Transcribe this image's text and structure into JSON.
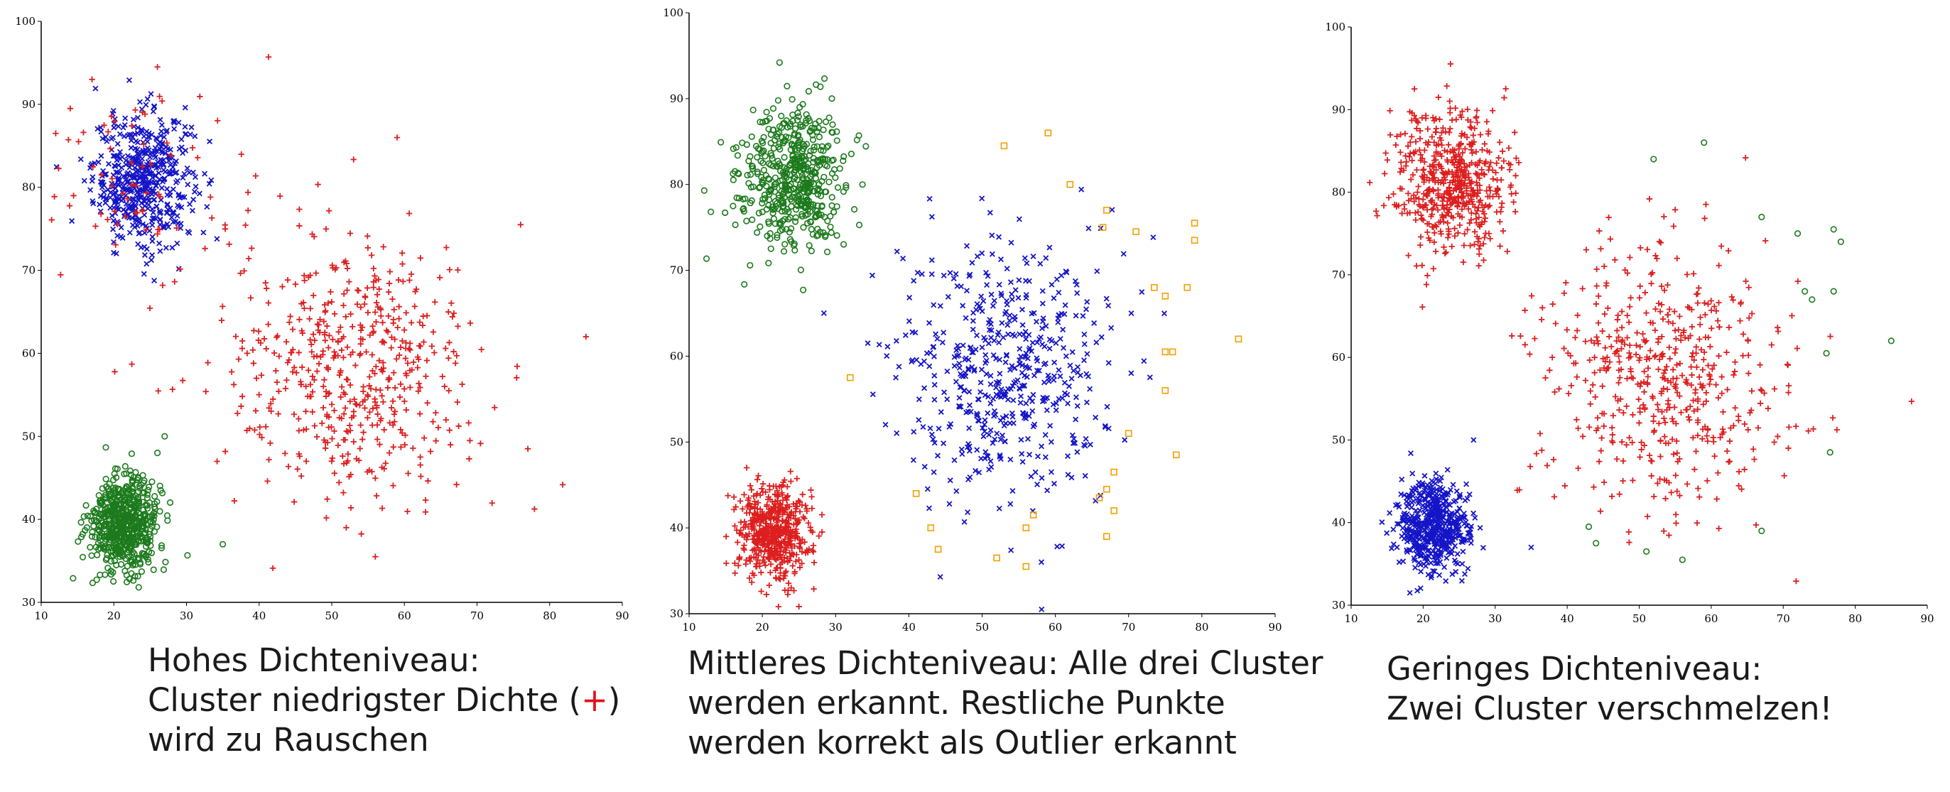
{
  "chart_data": [
    {
      "type": "scatter",
      "title": "",
      "xlabel": "",
      "ylabel": "",
      "xlim": [
        10,
        90
      ],
      "ylim": [
        30,
        100
      ],
      "xticks": [
        "10",
        "20",
        "30",
        "40",
        "50",
        "60",
        "70",
        "80",
        "90"
      ],
      "yticks": [
        "30",
        "40",
        "50",
        "60",
        "70",
        "80",
        "90",
        "100"
      ],
      "grid": false,
      "colors": {
        "red": "#dd1f1f",
        "blue": "#1515c8",
        "green": "#1c7a1c"
      },
      "clusters": [
        {
          "color": "blue",
          "marker": "x",
          "cx": 24,
          "cy": 81,
          "sx": 3.4,
          "sy": 4.0,
          "n": 520
        },
        {
          "color": "red",
          "marker": "plus",
          "cx": 53,
          "cy": 58,
          "sx": 8.5,
          "sy": 8.0,
          "n": 520
        },
        {
          "color": "green",
          "marker": "circle",
          "cx": 21.5,
          "cy": 39.5,
          "sx": 2.4,
          "sy": 2.8,
          "n": 560
        },
        {
          "color": "red",
          "marker": "plus",
          "cx": 24,
          "cy": 80,
          "sx": 7,
          "sy": 8,
          "n": 70
        }
      ],
      "points": [
        {
          "x": 12,
          "y": 86.5,
          "color": "red",
          "marker": "plus"
        },
        {
          "x": 14,
          "y": 89.5,
          "color": "red",
          "marker": "plus"
        },
        {
          "x": 17,
          "y": 93,
          "color": "red",
          "marker": "plus"
        },
        {
          "x": 26,
          "y": 94.5,
          "color": "red",
          "marker": "plus"
        },
        {
          "x": 59,
          "y": 86,
          "color": "red",
          "marker": "plus"
        },
        {
          "x": 76,
          "y": 75.5,
          "color": "red",
          "marker": "plus"
        },
        {
          "x": 85,
          "y": 62,
          "color": "red",
          "marker": "plus"
        },
        {
          "x": 77,
          "y": 48.5,
          "color": "red",
          "marker": "plus"
        },
        {
          "x": 52,
          "y": 39,
          "color": "red",
          "marker": "plus"
        },
        {
          "x": 56,
          "y": 35.5,
          "color": "red",
          "marker": "plus"
        },
        {
          "x": 27,
          "y": 50,
          "color": "green",
          "marker": "circle"
        },
        {
          "x": 26,
          "y": 48,
          "color": "green",
          "marker": "circle"
        },
        {
          "x": 35,
          "y": 37,
          "color": "green",
          "marker": "circle"
        }
      ]
    },
    {
      "type": "scatter",
      "title": "",
      "xlabel": "",
      "ylabel": "",
      "xlim": [
        10,
        90
      ],
      "ylim": [
        30,
        100
      ],
      "xticks": [
        "10",
        "20",
        "30",
        "40",
        "50",
        "60",
        "70",
        "80",
        "90"
      ],
      "yticks": [
        "30",
        "40",
        "50",
        "60",
        "70",
        "80",
        "90",
        "100"
      ],
      "grid": false,
      "colors": {
        "red": "#dd1f1f",
        "blue": "#1515c8",
        "green": "#1c7a1c",
        "orange": "#f2a000"
      },
      "clusters": [
        {
          "color": "green",
          "marker": "circle",
          "cx": 24,
          "cy": 81,
          "sx": 3.6,
          "sy": 4.2,
          "n": 500
        },
        {
          "color": "blue",
          "marker": "x",
          "cx": 53,
          "cy": 58,
          "sx": 7.5,
          "sy": 7.5,
          "n": 520
        },
        {
          "color": "red",
          "marker": "plus",
          "cx": 21.5,
          "cy": 39.5,
          "sx": 2.4,
          "sy": 2.8,
          "n": 560
        }
      ],
      "points": [
        {
          "x": 53,
          "y": 84.5,
          "color": "orange",
          "marker": "square"
        },
        {
          "x": 59,
          "y": 86,
          "color": "orange",
          "marker": "square"
        },
        {
          "x": 62,
          "y": 80,
          "color": "orange",
          "marker": "square"
        },
        {
          "x": 67,
          "y": 77,
          "color": "orange",
          "marker": "square"
        },
        {
          "x": 66.5,
          "y": 75,
          "color": "orange",
          "marker": "square"
        },
        {
          "x": 71,
          "y": 74.5,
          "color": "orange",
          "marker": "square"
        },
        {
          "x": 79,
          "y": 75.5,
          "color": "orange",
          "marker": "square"
        },
        {
          "x": 79,
          "y": 73.5,
          "color": "orange",
          "marker": "square"
        },
        {
          "x": 73.5,
          "y": 68,
          "color": "orange",
          "marker": "square"
        },
        {
          "x": 75,
          "y": 67,
          "color": "orange",
          "marker": "square"
        },
        {
          "x": 78,
          "y": 68,
          "color": "orange",
          "marker": "square"
        },
        {
          "x": 85,
          "y": 62,
          "color": "orange",
          "marker": "square"
        },
        {
          "x": 75,
          "y": 60.5,
          "color": "orange",
          "marker": "square"
        },
        {
          "x": 76,
          "y": 60.5,
          "color": "orange",
          "marker": "square"
        },
        {
          "x": 75,
          "y": 56,
          "color": "orange",
          "marker": "square"
        },
        {
          "x": 70,
          "y": 51,
          "color": "orange",
          "marker": "square"
        },
        {
          "x": 76.5,
          "y": 48.5,
          "color": "orange",
          "marker": "square"
        },
        {
          "x": 68,
          "y": 46.5,
          "color": "orange",
          "marker": "square"
        },
        {
          "x": 67,
          "y": 44.5,
          "color": "orange",
          "marker": "square"
        },
        {
          "x": 66,
          "y": 43.5,
          "color": "orange",
          "marker": "square"
        },
        {
          "x": 68,
          "y": 42,
          "color": "orange",
          "marker": "square"
        },
        {
          "x": 57,
          "y": 41.5,
          "color": "orange",
          "marker": "square"
        },
        {
          "x": 56,
          "y": 40,
          "color": "orange",
          "marker": "square"
        },
        {
          "x": 67,
          "y": 39,
          "color": "orange",
          "marker": "square"
        },
        {
          "x": 43,
          "y": 40,
          "color": "orange",
          "marker": "square"
        },
        {
          "x": 44,
          "y": 37.5,
          "color": "orange",
          "marker": "square"
        },
        {
          "x": 52,
          "y": 36.5,
          "color": "orange",
          "marker": "square"
        },
        {
          "x": 56,
          "y": 35.5,
          "color": "orange",
          "marker": "square"
        },
        {
          "x": 32,
          "y": 57.5,
          "color": "orange",
          "marker": "square"
        },
        {
          "x": 41,
          "y": 44,
          "color": "orange",
          "marker": "square"
        }
      ]
    },
    {
      "type": "scatter",
      "title": "",
      "xlabel": "",
      "ylabel": "",
      "xlim": [
        10,
        90
      ],
      "ylim": [
        30,
        100
      ],
      "xticks": [
        "10",
        "20",
        "30",
        "40",
        "50",
        "60",
        "70",
        "80",
        "90"
      ],
      "yticks": [
        "30",
        "40",
        "50",
        "60",
        "70",
        "80",
        "90",
        "100"
      ],
      "grid": false,
      "colors": {
        "red": "#dd1f1f",
        "blue": "#1515c8",
        "green": "#1c7a1c"
      },
      "clusters": [
        {
          "color": "red",
          "marker": "plus",
          "cx": 24,
          "cy": 81,
          "sx": 4.0,
          "sy": 4.5,
          "n": 560
        },
        {
          "color": "red",
          "marker": "plus",
          "cx": 53,
          "cy": 58,
          "sx": 8.5,
          "sy": 8.0,
          "n": 520
        },
        {
          "color": "blue",
          "marker": "x",
          "cx": 21.5,
          "cy": 39.5,
          "sx": 2.4,
          "sy": 2.8,
          "n": 560
        }
      ],
      "points": [
        {
          "x": 52,
          "y": 84,
          "color": "green",
          "marker": "circle"
        },
        {
          "x": 59,
          "y": 86,
          "color": "green",
          "marker": "circle"
        },
        {
          "x": 72,
          "y": 75,
          "color": "green",
          "marker": "circle"
        },
        {
          "x": 77,
          "y": 75.5,
          "color": "green",
          "marker": "circle"
        },
        {
          "x": 78,
          "y": 74,
          "color": "green",
          "marker": "circle"
        },
        {
          "x": 67,
          "y": 77,
          "color": "green",
          "marker": "circle"
        },
        {
          "x": 73,
          "y": 68,
          "color": "green",
          "marker": "circle"
        },
        {
          "x": 74,
          "y": 67,
          "color": "green",
          "marker": "circle"
        },
        {
          "x": 77,
          "y": 68,
          "color": "green",
          "marker": "circle"
        },
        {
          "x": 85,
          "y": 62,
          "color": "green",
          "marker": "circle"
        },
        {
          "x": 76,
          "y": 60.5,
          "color": "green",
          "marker": "circle"
        },
        {
          "x": 76.5,
          "y": 48.5,
          "color": "green",
          "marker": "circle"
        },
        {
          "x": 67,
          "y": 39,
          "color": "green",
          "marker": "circle"
        },
        {
          "x": 44,
          "y": 37.5,
          "color": "green",
          "marker": "circle"
        },
        {
          "x": 43,
          "y": 39.5,
          "color": "green",
          "marker": "circle"
        },
        {
          "x": 51,
          "y": 36.5,
          "color": "green",
          "marker": "circle"
        },
        {
          "x": 56,
          "y": 35.5,
          "color": "green",
          "marker": "circle"
        },
        {
          "x": 35,
          "y": 37,
          "color": "blue",
          "marker": "x"
        },
        {
          "x": 27,
          "y": 50,
          "color": "blue",
          "marker": "x"
        }
      ]
    }
  ],
  "captions": [
    {
      "line1": "Hohes Dichteniveau:",
      "line2_pre": "Cluster niedrigster Dichte (",
      "line2_sym": "+",
      "line2_post": ")",
      "line3": "wird zu Rauschen"
    },
    {
      "line1": "Mittleres Dichteniveau: Alle drei Cluster",
      "line2": "werden erkannt. Restliche Punkte",
      "line3": "werden korrekt als Outlier erkannt"
    },
    {
      "line1": "Geringes Dichteniveau:",
      "line2": "Zwei Cluster verschmelzen!"
    }
  ]
}
